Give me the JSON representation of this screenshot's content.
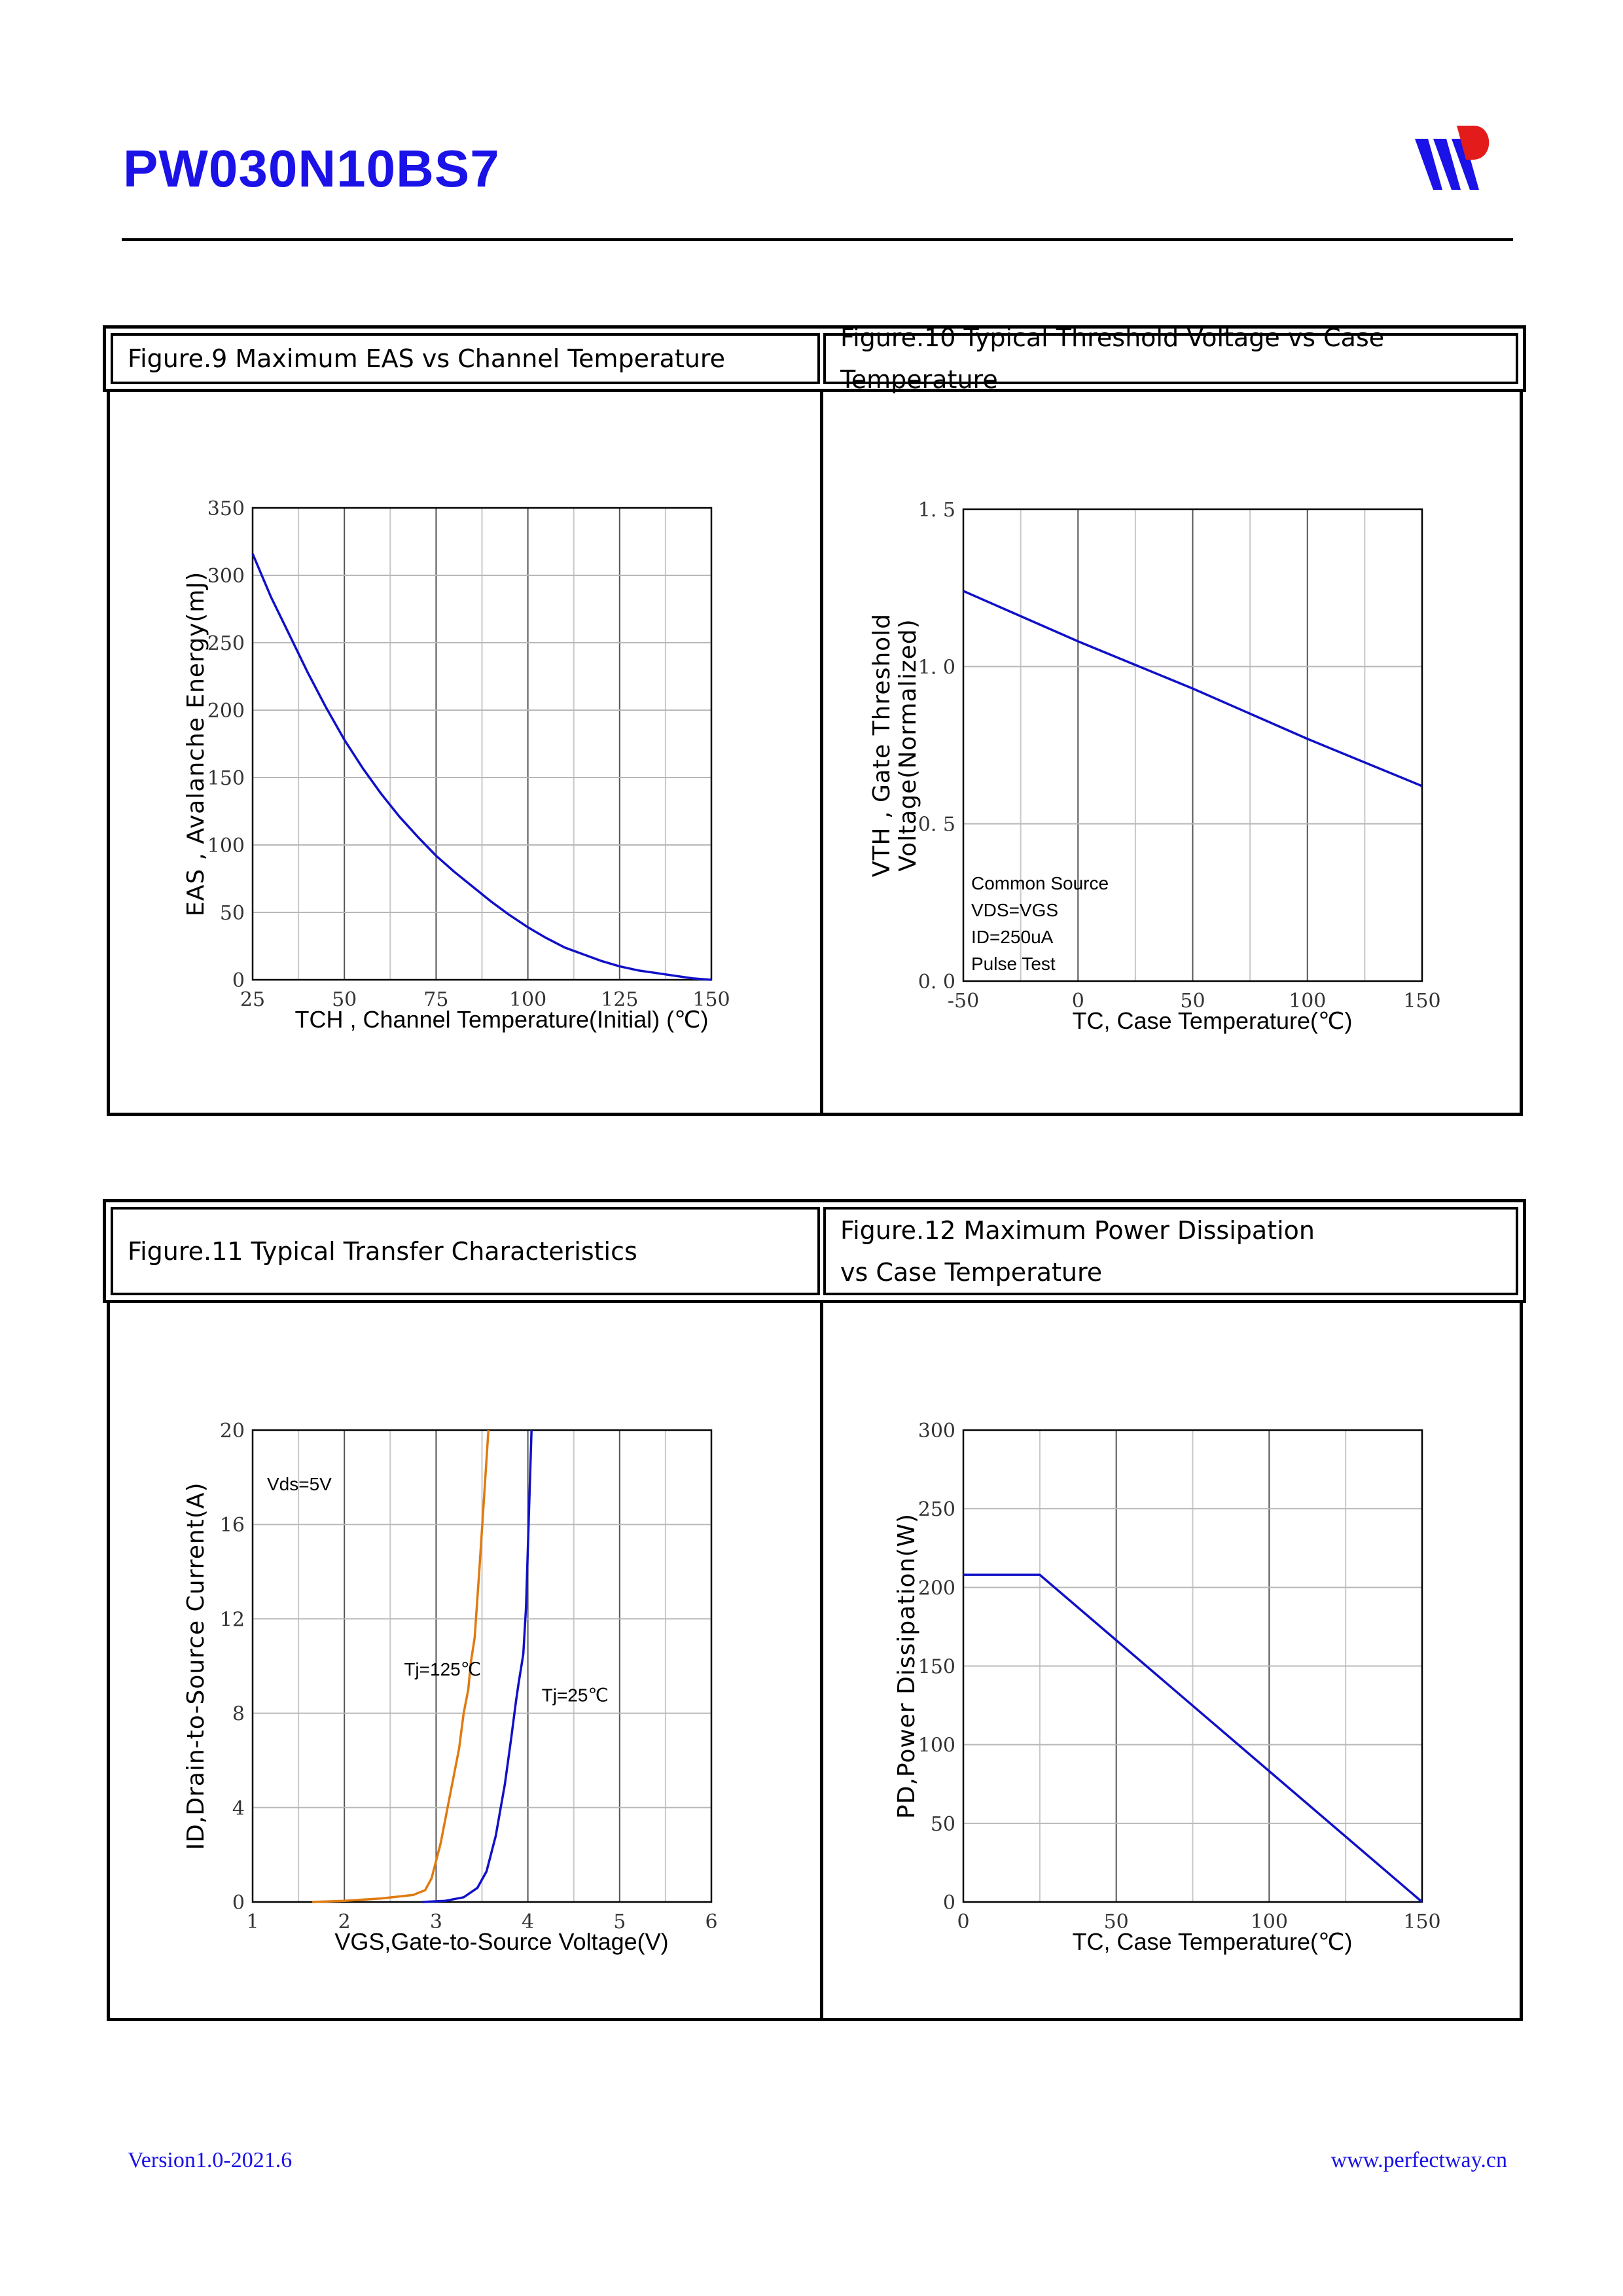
{
  "header": {
    "part_number": "PW030N10BS7",
    "logo_icon": "pw-logo-icon",
    "colors": {
      "title": "#1a12e6",
      "curve": "#1010c8",
      "curve_alt": "#e07a10"
    }
  },
  "footer": {
    "version": "Version1.0-2021.6",
    "website": "www.perfectway.cn"
  },
  "figures": {
    "fig9": {
      "caption": "Figure.9 Maximum EAS vs Channel Temperature"
    },
    "fig10": {
      "caption": "Figure.10 Typical Threshold Voltage vs Case Temperature"
    },
    "fig11": {
      "caption": "Figure.11 Typical Transfer Characteristics"
    },
    "fig12": {
      "caption_line1": "Figure.12 Maximum Power Dissipation",
      "caption_line2": "vs Case Temperature"
    }
  },
  "chart_data": [
    {
      "id": "fig9",
      "type": "line",
      "xlabel": "TCH , Channel Temperature(Initial) (℃)",
      "ylabel": "EAS , Avalanche Energy(mJ)",
      "xlim": [
        25,
        150
      ],
      "ylim": [
        0,
        350
      ],
      "xticks": [
        25,
        50,
        75,
        100,
        125,
        150
      ],
      "yticks": [
        0,
        50,
        100,
        150,
        200,
        250,
        300,
        350
      ],
      "x_minor_lines": [
        37.5,
        62.5,
        87.5,
        112.5,
        137.5
      ],
      "grid": true,
      "annotations": [],
      "series": [
        {
          "x": [
            25,
            30,
            35,
            40,
            45,
            50,
            55,
            60,
            65,
            70,
            75,
            80,
            85,
            90,
            95,
            100,
            105,
            110,
            115,
            120,
            125,
            130,
            135,
            140,
            145,
            150
          ],
          "y": [
            316,
            284,
            256,
            228,
            202,
            178,
            157,
            138,
            121,
            106,
            92,
            80,
            69,
            58,
            48,
            39,
            31,
            24,
            19,
            14,
            10,
            7,
            5,
            3,
            1,
            0
          ],
          "color": "#1010c8"
        }
      ]
    },
    {
      "id": "fig10",
      "type": "line",
      "xlabel": "TC, Case Temperature(℃)",
      "ylabel": "VTH , Gate Threshold Voltage(Normalized)",
      "xlim": [
        -50,
        150
      ],
      "ylim": [
        0,
        1.5
      ],
      "xticks": [
        -50,
        0,
        50,
        100,
        150
      ],
      "xtick_labels": [
        "-50",
        "0",
        "50",
        "100",
        "150"
      ],
      "yticks": [
        0,
        0.5,
        1.0,
        1.5
      ],
      "ytick_labels": [
        "0. 0",
        "0. 5",
        "1. 0",
        "1. 5"
      ],
      "x_minor_lines": [
        -25,
        25,
        75,
        125
      ],
      "grid": true,
      "annotations": [
        "Common Source",
        "VDS=VGS",
        "ID=250uA",
        "Pulse Test"
      ],
      "series": [
        {
          "x": [
            -50,
            0,
            50,
            100,
            150
          ],
          "y": [
            1.24,
            1.08,
            0.93,
            0.77,
            0.62
          ],
          "color": "#1010c8"
        }
      ]
    },
    {
      "id": "fig11",
      "type": "line",
      "xlabel": "VGS,Gate-to-Source Voltage(V)",
      "ylabel": "ID,Drain-to-Source Current(A)",
      "xlim": [
        1,
        6
      ],
      "ylim": [
        0,
        20
      ],
      "xticks": [
        1,
        2,
        3,
        4,
        5,
        6
      ],
      "yticks": [
        0,
        4,
        8,
        12,
        16,
        20
      ],
      "x_minor_lines": [
        1.5,
        2.5,
        3.5,
        4.5,
        5.5
      ],
      "grid": true,
      "annotations": [
        "Vds=5V"
      ],
      "series": [
        {
          "name": "Tj=125℃",
          "x": [
            1.65,
            2.0,
            2.4,
            2.75,
            2.88,
            2.95,
            3.05,
            3.15,
            3.25,
            3.3,
            3.35,
            3.38,
            3.42,
            3.47,
            3.52,
            3.57
          ],
          "y": [
            0,
            0.05,
            0.15,
            0.3,
            0.5,
            1.0,
            2.5,
            4.5,
            6.5,
            8.0,
            9.0,
            10.2,
            11.2,
            14,
            17,
            20
          ],
          "color": "#e07a10"
        },
        {
          "name": "Tj=25℃",
          "x": [
            2.85,
            3.1,
            3.3,
            3.45,
            3.55,
            3.65,
            3.75,
            3.82,
            3.87,
            3.9,
            3.95,
            3.98,
            4.0,
            4.02,
            4.04
          ],
          "y": [
            0,
            0.05,
            0.2,
            0.6,
            1.3,
            2.8,
            5.0,
            7.0,
            8.5,
            9.3,
            10.5,
            12.5,
            15,
            17.5,
            20
          ],
          "color": "#1010c8"
        }
      ]
    },
    {
      "id": "fig12",
      "type": "line",
      "xlabel": "TC, Case Temperature(℃)",
      "ylabel": "PD,Power Dissipation(W)",
      "xlim": [
        0,
        150
      ],
      "ylim": [
        0,
        300
      ],
      "xticks": [
        0,
        50,
        100,
        150
      ],
      "yticks": [
        0,
        50,
        100,
        150,
        200,
        250,
        300
      ],
      "x_minor_lines": [
        25,
        75,
        125
      ],
      "grid": true,
      "annotations": [],
      "series": [
        {
          "x": [
            0,
            25,
            150
          ],
          "y": [
            208,
            208,
            0
          ],
          "color": "#1010c8"
        }
      ]
    }
  ]
}
